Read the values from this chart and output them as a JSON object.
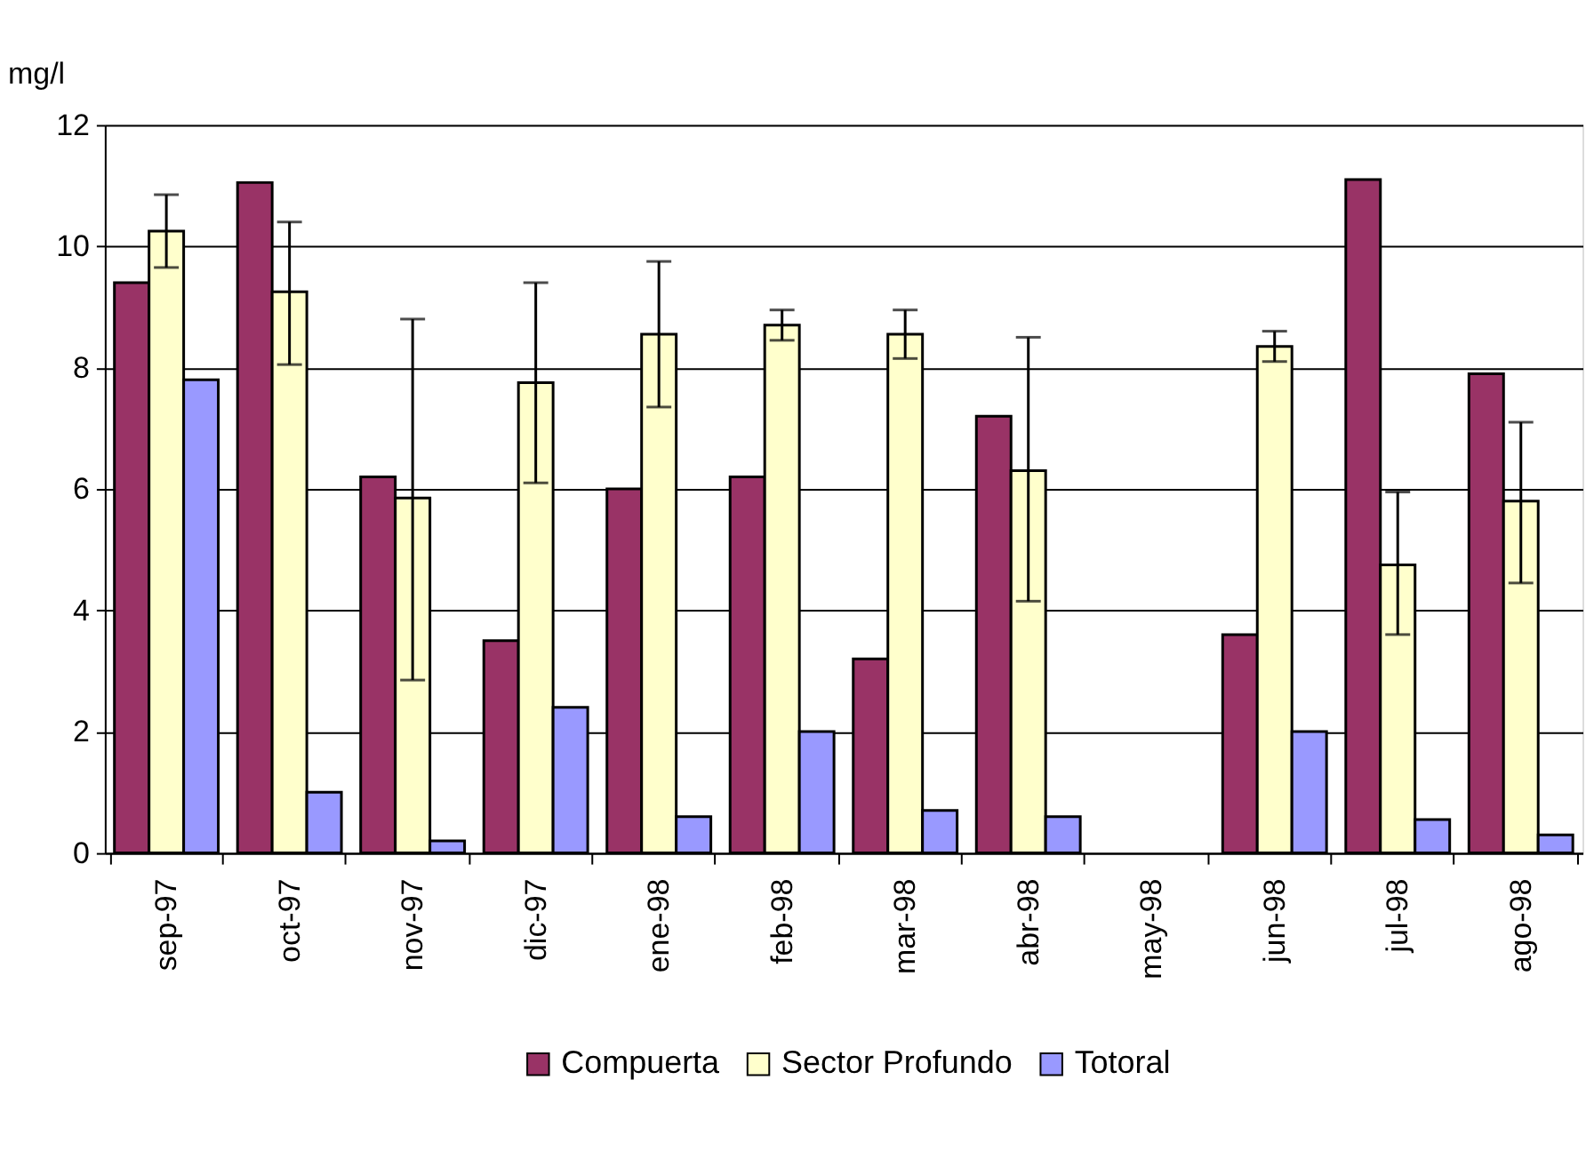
{
  "chart_data": {
    "type": "bar",
    "ylabel": "mg/l",
    "categories": [
      "sep-97",
      "oct-97",
      "nov-97",
      "dic-97",
      "ene-98",
      "feb-98",
      "mar-98",
      "abr-98",
      "may-98",
      "jun-98",
      "jul-98",
      "ago-98"
    ],
    "series": [
      {
        "name": "Compuerta",
        "color": "#993366",
        "values": [
          9.4,
          11.05,
          6.2,
          3.5,
          6.0,
          6.2,
          3.2,
          7.2,
          null,
          3.6,
          11.1,
          7.9
        ]
      },
      {
        "name": "Sector Profundo",
        "color": "#ffffcc",
        "values": [
          10.25,
          9.25,
          5.85,
          7.75,
          8.55,
          8.7,
          8.55,
          6.3,
          null,
          8.35,
          4.75,
          5.8
        ],
        "errors": [
          [
            9.65,
            10.85
          ],
          [
            8.05,
            10.4
          ],
          [
            2.85,
            8.8
          ],
          [
            6.1,
            9.4
          ],
          [
            7.35,
            9.75
          ],
          [
            8.45,
            8.95
          ],
          [
            8.15,
            8.95
          ],
          [
            4.15,
            8.5
          ],
          null,
          [
            8.1,
            8.6
          ],
          [
            3.6,
            5.95
          ],
          [
            4.45,
            7.1
          ]
        ]
      },
      {
        "name": "Totoral",
        "color": "#9999ff",
        "values": [
          7.8,
          1.0,
          0.2,
          2.4,
          0.6,
          2.0,
          0.7,
          0.6,
          null,
          2.0,
          0.55,
          0.3
        ]
      }
    ],
    "ylim": [
      0,
      12
    ],
    "yticks": [
      0,
      2,
      4,
      6,
      8,
      10,
      12
    ],
    "grid": "y",
    "legend": "bottom"
  }
}
